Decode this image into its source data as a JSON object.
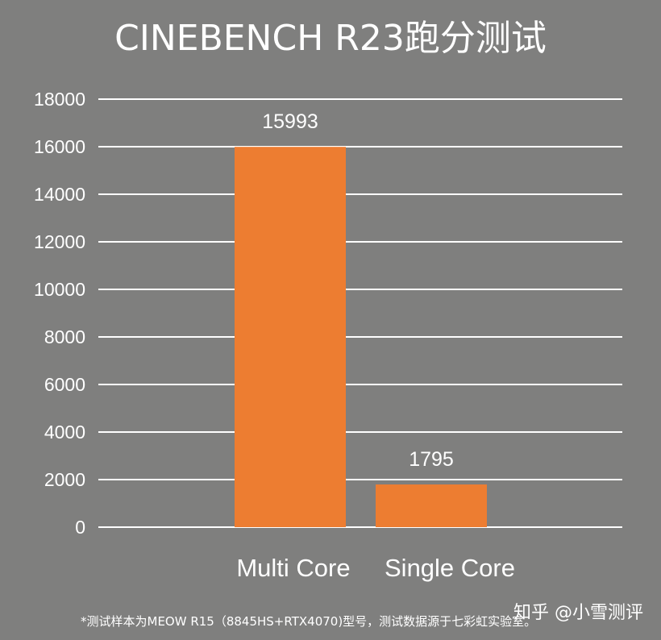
{
  "chart_data": {
    "type": "bar",
    "title": "CINEBENCH R23跑分测试",
    "categories": [
      "Multi Core",
      "Single Core"
    ],
    "values": [
      15993,
      1795
    ],
    "data_labels": [
      "15993",
      "1795"
    ],
    "ylim": [
      0,
      18000
    ],
    "y_ticks": [
      0,
      2000,
      4000,
      6000,
      8000,
      10000,
      12000,
      14000,
      16000,
      18000
    ],
    "grid": true,
    "legend": "none",
    "bar_color": "#ed7d31",
    "background_color": "#7f7f7e",
    "grid_color": "#ffffff"
  },
  "footnote": "*测试样本为MEOW R15（8845HS+RTX4070)型号，测试数据源于七彩虹实验室。",
  "watermark": "知乎 @小雪测评"
}
